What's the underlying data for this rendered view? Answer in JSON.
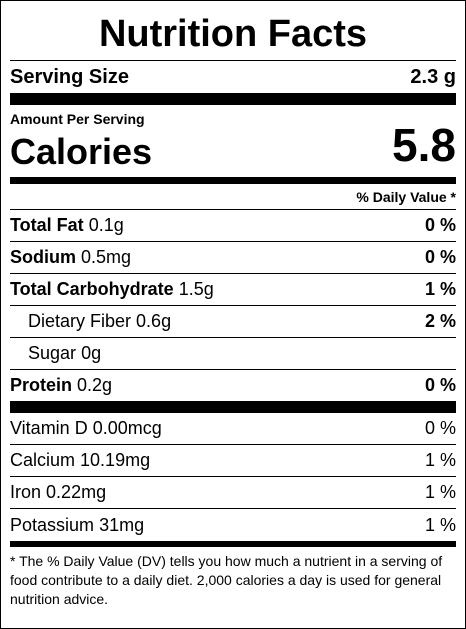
{
  "title": "Nutrition Facts",
  "serving": {
    "label": "Serving Size",
    "value": "2.3 g"
  },
  "calories": {
    "header": "Amount Per Serving",
    "label": "Calories",
    "value": "5.8"
  },
  "dv_header": "% Daily Value *",
  "nutrients": [
    {
      "name": "Total Fat",
      "amount": "0.1g",
      "dv": "0 %"
    },
    {
      "name": "Sodium",
      "amount": "0.5mg",
      "dv": "0 %"
    },
    {
      "name": "Total Carbohydrate",
      "amount": "1.5g",
      "dv": "1 %"
    },
    {
      "name": "Dietary Fiber",
      "amount": "0.6g",
      "dv": "2 %",
      "indent": true
    },
    {
      "name": "Sugar",
      "amount": "0g",
      "indent": true
    },
    {
      "name": "Protein",
      "amount": "0.2g",
      "dv": "0 %"
    }
  ],
  "vitamins": [
    {
      "name": "Vitamin D",
      "amount": "0.00mcg",
      "dv": "0 %"
    },
    {
      "name": "Calcium",
      "amount": "10.19mg",
      "dv": "1 %"
    },
    {
      "name": "Iron",
      "amount": "0.22mg",
      "dv": "1 %"
    },
    {
      "name": "Potassium",
      "amount": "31mg",
      "dv": "1 %"
    }
  ],
  "footnote": "* The % Daily Value (DV) tells you how much a nutrient in a serving of food contribute to a daily diet. 2,000 calories a day is used for general nutrition advice."
}
